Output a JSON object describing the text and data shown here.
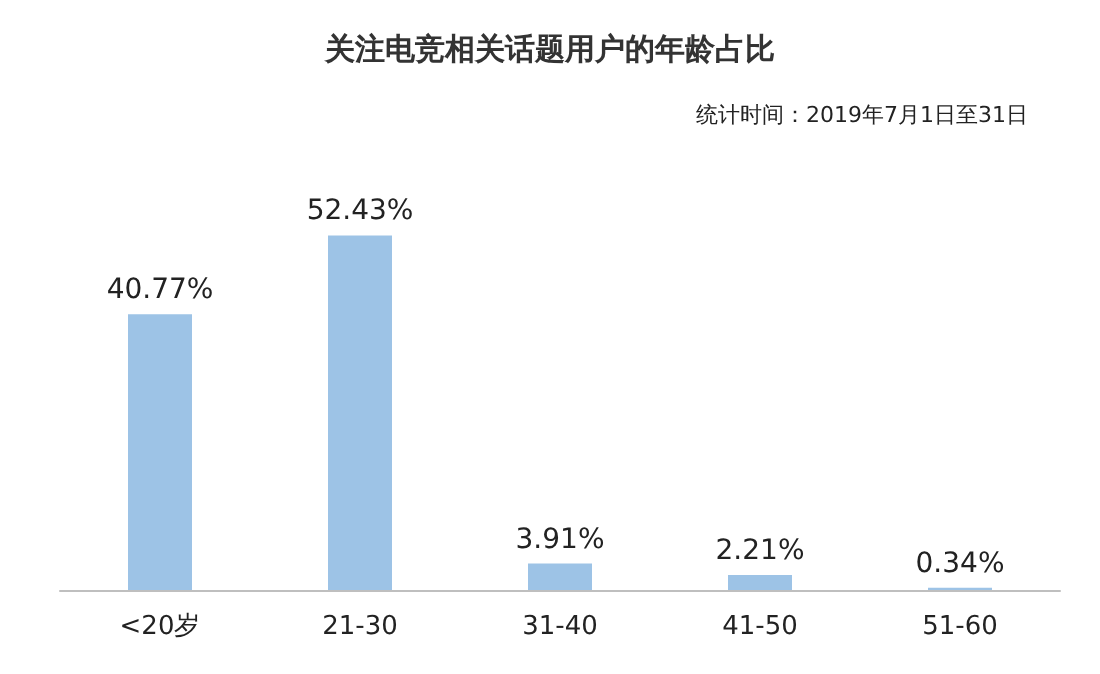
{
  "chart_data": {
    "type": "bar",
    "title": "关注电竞相关话题用户的年龄占比",
    "annotations": [
      "统计时间：2019年7月1日至31日"
    ],
    "categories": [
      "<20岁",
      "21-30",
      "31-40",
      "41-50",
      "51-60"
    ],
    "values": [
      40.77,
      52.43,
      3.91,
      2.21,
      0.34
    ],
    "value_labels": [
      "40.77%",
      "52.43%",
      "3.91%",
      "2.21%",
      "0.34%"
    ],
    "color": "#9dc3e6",
    "tick_labels": "x",
    "grid": false
  }
}
